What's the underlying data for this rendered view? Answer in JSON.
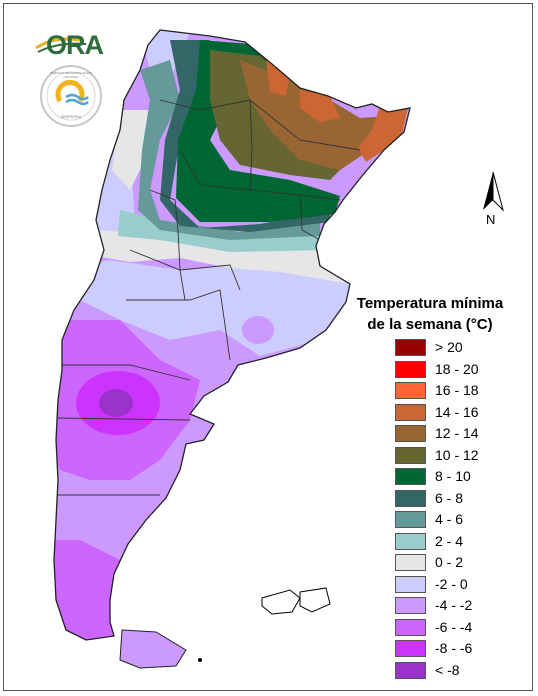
{
  "logos": {
    "ora": "ORA",
    "smn_ring": "SERVICIO METEOROLÓGICO NACIONAL",
    "smn_country": "ARGENTINA"
  },
  "north_arrow": {
    "label": "N"
  },
  "legend": {
    "title_line1": "Temperatura mínima",
    "title_line2": "de la semana (°C)",
    "items": [
      {
        "label": "> 20",
        "color": "#990000"
      },
      {
        "label": "18 - 20",
        "color": "#ff0000"
      },
      {
        "label": "16 - 18",
        "color": "#ff6633"
      },
      {
        "label": "14 - 16",
        "color": "#cc6633"
      },
      {
        "label": "12 - 14",
        "color": "#996633"
      },
      {
        "label": "10 - 12",
        "color": "#666633"
      },
      {
        "label": "8 - 10",
        "color": "#006633"
      },
      {
        "label": "6 - 8",
        "color": "#336666"
      },
      {
        "label": "4 - 6",
        "color": "#669999"
      },
      {
        "label": "2 - 4",
        "color": "#99cccc"
      },
      {
        "label": "0 - 2",
        "color": "#e6e6e6"
      },
      {
        "label": "-2 - 0",
        "color": "#ccccff"
      },
      {
        "label": "-4 - -2",
        "color": "#cc99ff"
      },
      {
        "label": "-6 - -4",
        "color": "#cc66ff"
      },
      {
        "label": "-8 - -6",
        "color": "#cc33ff"
      },
      {
        "label": "< -8",
        "color": "#9933cc"
      }
    ]
  }
}
